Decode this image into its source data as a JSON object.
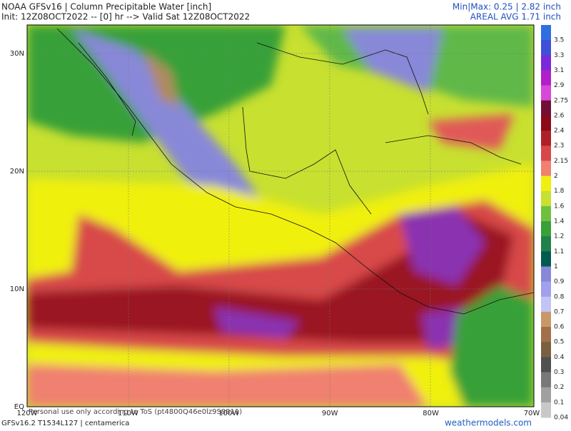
{
  "header": {
    "title": "NOAA GFSv16 | Column Precipitable Water [inch]",
    "init": "Init: 12Z08OCT2022 -- [0] hr --> Valid Sat 12Z08OCT2022",
    "minmax": "Min|Max: 0.25 | 2.82 inch",
    "areal": "AREAL AVG 1.71 inch"
  },
  "latitude_labels": [
    "30N",
    "20N",
    "10N",
    "EQ"
  ],
  "longitude_labels": [
    "120W",
    "110W",
    "100W",
    "90W",
    "80W",
    "70W"
  ],
  "colorbar": [
    {
      "label": "3.5",
      "color": "#2f6fe0"
    },
    {
      "label": "3.3",
      "color": "#3e50d8"
    },
    {
      "label": "3.1",
      "color": "#7a2ad8"
    },
    {
      "label": "2.9",
      "color": "#b020c8"
    },
    {
      "label": "2.75",
      "color": "#d848d8"
    },
    {
      "label": "2.6",
      "color": "#701038"
    },
    {
      "label": "2.4",
      "color": "#8a0a18"
    },
    {
      "label": "2.3",
      "color": "#b02028"
    },
    {
      "label": "2.15",
      "color": "#d84848"
    },
    {
      "label": "2",
      "color": "#f08070"
    },
    {
      "label": "1.8",
      "color": "#f0f010"
    },
    {
      "label": "1.6",
      "color": "#c8e030"
    },
    {
      "label": "1.4",
      "color": "#70c040"
    },
    {
      "label": "1.2",
      "color": "#38a038"
    },
    {
      "label": "1.1",
      "color": "#208048"
    },
    {
      "label": "1",
      "color": "#005a50"
    },
    {
      "label": "0.9",
      "color": "#8888d8"
    },
    {
      "label": "0.8",
      "color": "#a0a0ec"
    },
    {
      "label": "0.7",
      "color": "#c4c4f4"
    },
    {
      "label": "0.6",
      "color": "#c89868"
    },
    {
      "label": "0.5",
      "color": "#a07048"
    },
    {
      "label": "0.4",
      "color": "#7a6040"
    },
    {
      "label": "0.3",
      "color": "#505050"
    },
    {
      "label": "0.2",
      "color": "#787878"
    },
    {
      "label": "0.1",
      "color": "#a0a0a0"
    },
    {
      "label": "0.04",
      "color": "#c8c8c8"
    }
  ],
  "footer": {
    "model": "GFSv16.2 T1534L127 | centamerica",
    "watermark": "Personal use only according to ToS (pt4800Q46e0lz9S8811)",
    "site": "weathermodels.com"
  }
}
